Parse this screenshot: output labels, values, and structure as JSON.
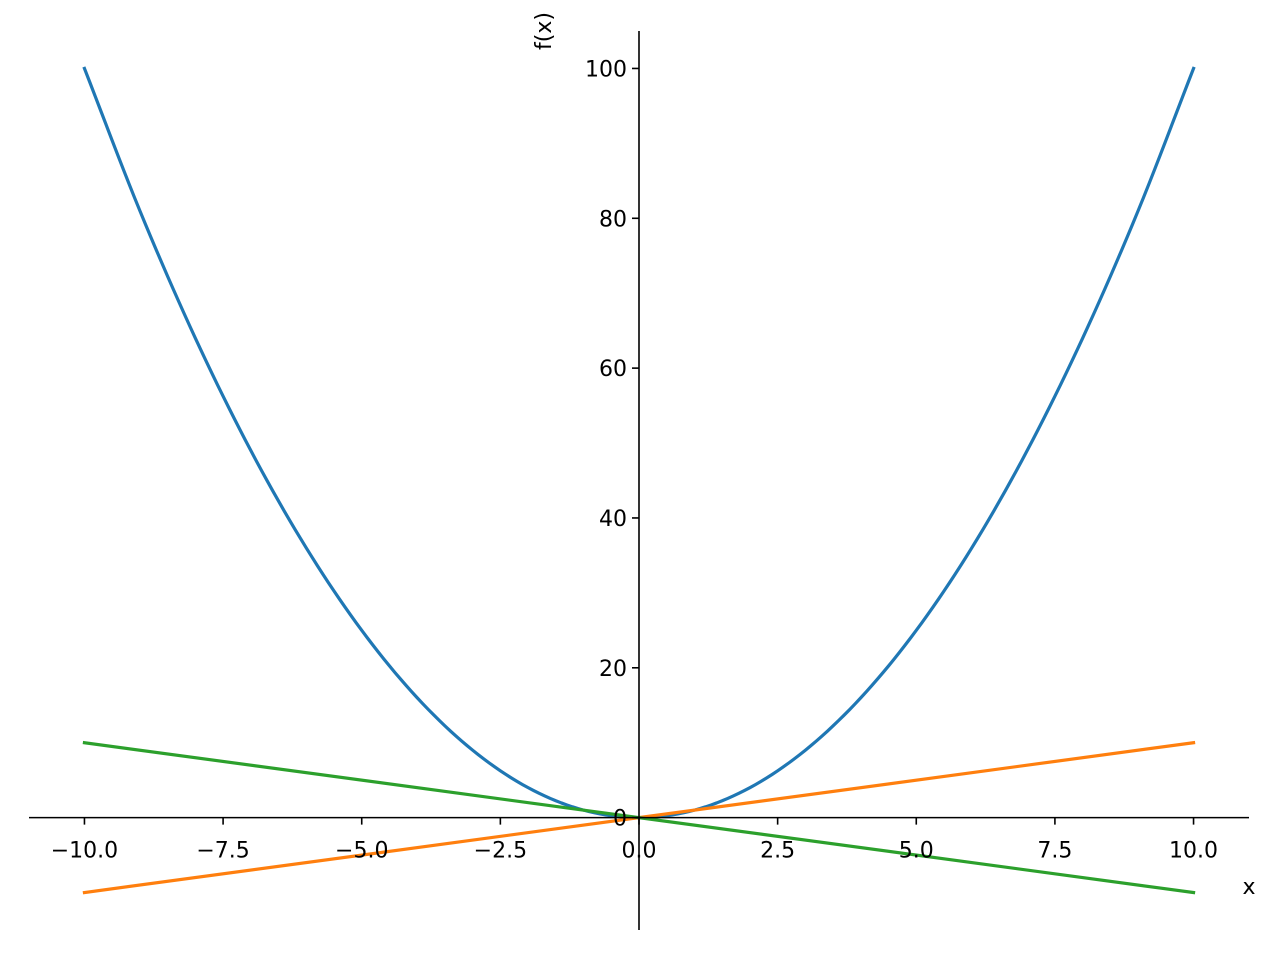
{
  "chart_data": {
    "type": "line",
    "xlabel": "x",
    "ylabel": "f(x)",
    "xlim": [
      -11.0,
      11.0
    ],
    "ylim": [
      -15.0,
      105.0
    ],
    "x_ticks": [
      -10.0,
      -7.5,
      -5.0,
      -2.5,
      0.0,
      2.5,
      5.0,
      7.5,
      10.0
    ],
    "x_tick_labels": [
      "−10.0",
      "−7.5",
      "−5.0",
      "−2.5",
      "0.0",
      "2.5",
      "5.0",
      "7.5",
      "10.0"
    ],
    "y_ticks": [
      0,
      20,
      40,
      60,
      80,
      100
    ],
    "y_tick_labels": [
      "0",
      "20",
      "40",
      "60",
      "80",
      "100"
    ],
    "grid": false,
    "legend": "none",
    "spines": "centered at origin",
    "series": [
      {
        "color": "#1f77b4",
        "x": [
          -10,
          -9,
          -8,
          -7,
          -6,
          -5,
          -4,
          -3,
          -2,
          -1,
          0,
          1,
          2,
          3,
          4,
          5,
          6,
          7,
          8,
          9,
          10
        ],
        "y": [
          100,
          81,
          64,
          49,
          36,
          25,
          16,
          9,
          4,
          1,
          0,
          1,
          4,
          9,
          16,
          25,
          36,
          49,
          64,
          81,
          100
        ]
      },
      {
        "color": "#ff7f0e",
        "x": [
          -10,
          10
        ],
        "y": [
          -10,
          10
        ]
      },
      {
        "color": "#2ca02c",
        "x": [
          -10,
          10
        ],
        "y": [
          10,
          -10
        ]
      }
    ]
  }
}
